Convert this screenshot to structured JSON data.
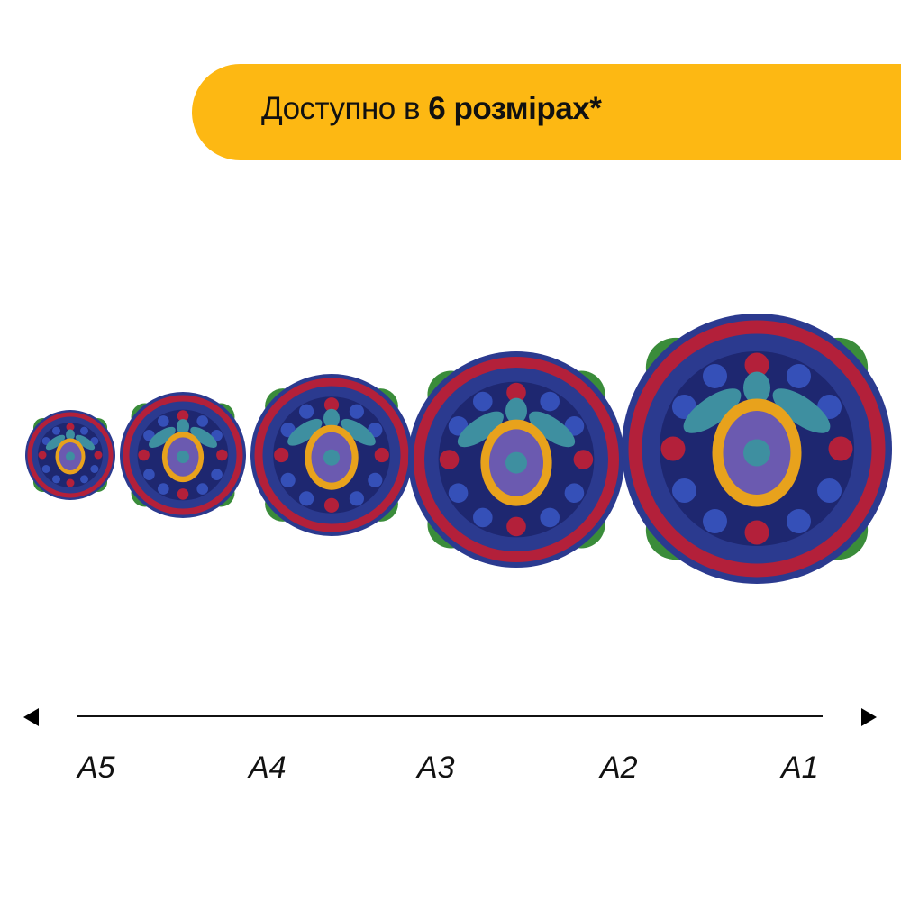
{
  "banner": {
    "text_prefix": "Доступно в ",
    "text_bold": "6 розмірах*",
    "color": "#FDB813"
  },
  "product": {
    "image": "turtle-mandala-wooden-puzzle",
    "sizes_shown": [
      "A5",
      "A4",
      "A3",
      "A2",
      "A1"
    ],
    "colors": [
      "#2B3A8F",
      "#B3203A",
      "#E8A21C",
      "#3E8FA0",
      "#3A8C3A"
    ]
  },
  "scale": {
    "labels": [
      "A5",
      "A4",
      "A3",
      "A2",
      "A1"
    ],
    "left_arrow": "arrow-left",
    "right_arrow": "arrow-right"
  }
}
